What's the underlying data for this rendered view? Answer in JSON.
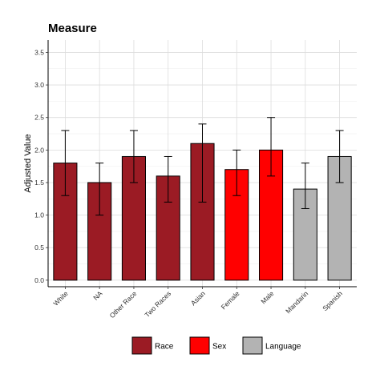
{
  "chart_data": {
    "type": "bar",
    "title": "Measure",
    "xlabel": "",
    "ylabel": "Adjusted Value",
    "ylim": [
      0,
      3.5
    ],
    "yticks": [
      "0.0",
      "0.5",
      "1.0",
      "1.5",
      "2.0",
      "2.5",
      "3.0",
      "3.5"
    ],
    "grid": true,
    "legend_position": "bottom",
    "categories": [
      "White",
      "NA",
      "Other Race",
      "Two Races",
      "Asian",
      "Female",
      "Male",
      "Mandarin",
      "Spanish"
    ],
    "values": [
      1.8,
      1.5,
      1.9,
      1.6,
      2.1,
      1.7,
      2.0,
      1.4,
      1.9
    ],
    "error_low": [
      1.3,
      1.0,
      1.5,
      1.2,
      1.2,
      1.3,
      1.6,
      1.1,
      1.5
    ],
    "error_high": [
      2.3,
      1.8,
      2.3,
      1.9,
      2.4,
      2.0,
      2.5,
      1.8,
      2.3
    ],
    "groups": [
      "Race",
      "Race",
      "Race",
      "Race",
      "Race",
      "Sex",
      "Sex",
      "Language",
      "Language"
    ],
    "legend": [
      {
        "name": "Race",
        "color": "#9B1B24"
      },
      {
        "name": "Sex",
        "color": "#FF0000"
      },
      {
        "name": "Language",
        "color": "#B3B3B3"
      }
    ]
  }
}
